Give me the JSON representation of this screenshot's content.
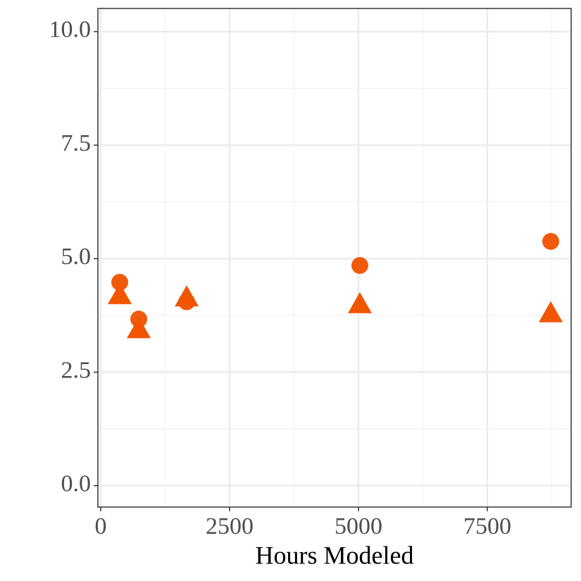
{
  "chart_data": {
    "type": "scatter",
    "x_label": "Hours Modeled",
    "x": [
      369,
      738,
      1667,
      5027,
      8730
    ],
    "series": [
      {
        "marker": "circle",
        "color": "#f05a0a",
        "values": [
          4.48,
          3.67,
          4.05,
          4.85,
          5.38
        ]
      },
      {
        "marker": "triangle",
        "color": "#f25500",
        "values": [
          4.2,
          3.45,
          4.15,
          4.0,
          3.8
        ]
      }
    ],
    "xlim": [
      -55,
      9126
    ],
    "ylim": [
      -0.47,
      10.51
    ],
    "xticks": [
      0,
      2500,
      5000,
      7500
    ],
    "yticks": [
      {
        "value": 0,
        "label": "0.0"
      },
      2.5,
      {
        "value": 5,
        "label": "5.0"
      },
      7.5,
      {
        "value": 10,
        "label": "10.0"
      }
    ],
    "grid": true,
    "minor_grid": true
  }
}
